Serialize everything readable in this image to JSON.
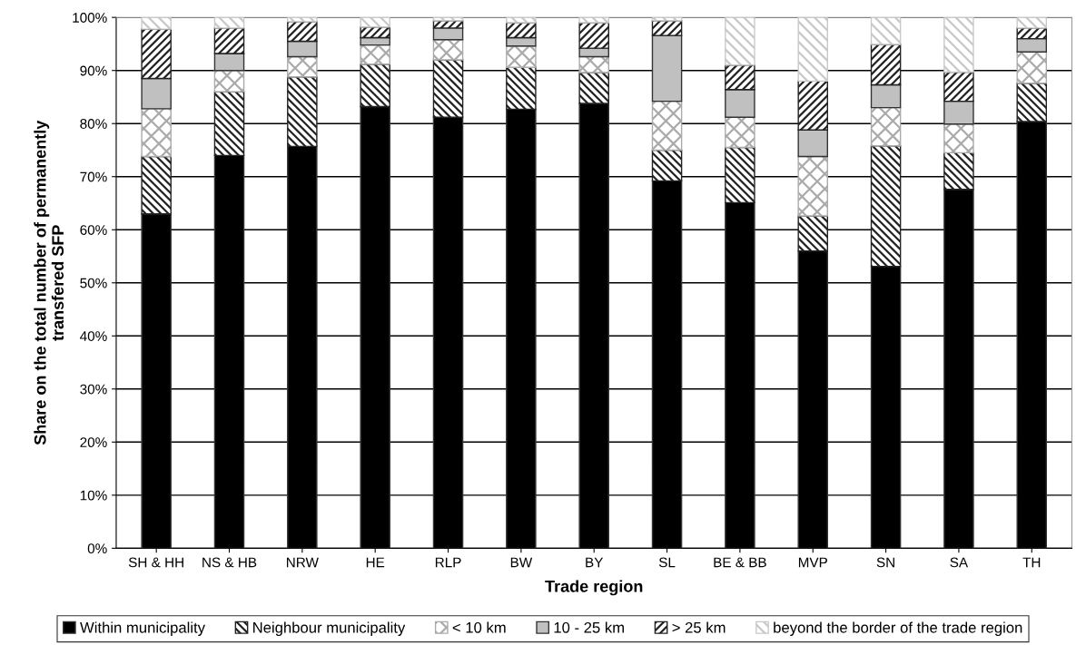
{
  "chart_data": {
    "type": "bar",
    "stacked": true,
    "xlabel": "Trade region",
    "ylabel": "Share on the total number of permanently\ntransfered SFP",
    "categories": [
      "SH & HH",
      "NS & HB",
      "NRW",
      "HE",
      "RLP",
      "BW",
      "BY",
      "SL",
      "BE & BB",
      "MVP",
      "SN",
      "SA",
      "TH"
    ],
    "series": [
      {
        "name": "Within municipality",
        "color": "#000000",
        "values": [
          63,
          74,
          75.7,
          83.2,
          81.2,
          82.7,
          83.8,
          69.2,
          65.1,
          56,
          53.1,
          67.6,
          80.4
        ]
      },
      {
        "name": "Neighbour municipality",
        "color": "#222222",
        "values": [
          10.8,
          12,
          13.1,
          8,
          10.8,
          7.9,
          5.8,
          5.8,
          10.4,
          6.6,
          22.7,
          6.9,
          7.2
        ]
      },
      {
        "name": "< 10 km",
        "color": "#aaaaaa",
        "values": [
          9,
          4,
          3.8,
          3.6,
          3.8,
          4,
          3,
          9.2,
          5.7,
          11.2,
          7.2,
          5.4,
          5.9
        ]
      },
      {
        "name": "10 - 25 km",
        "color": "#c0c0c0",
        "values": [
          5.7,
          3.2,
          2.9,
          1.4,
          2.2,
          1.6,
          1.6,
          12.4,
          5.2,
          5,
          4.3,
          4.3,
          2.5
        ]
      },
      {
        "name": "> 25 km",
        "color": "#222222",
        "values": [
          9.3,
          4.8,
          3.7,
          2,
          1.4,
          2.8,
          4.8,
          2.8,
          4.6,
          9.2,
          7.6,
          5.5,
          2
        ]
      },
      {
        "name": "beyond the border of the trade region",
        "color": "#c8c8c8",
        "values": [
          2.2,
          2,
          0.8,
          1.8,
          0.6,
          1,
          1,
          0.6,
          9,
          12,
          5.1,
          10.3,
          2
        ]
      }
    ],
    "ylim": [
      0,
      100
    ],
    "yticks": [
      {
        "value": 0,
        "label": "0%"
      },
      {
        "value": 10,
        "label": "10%"
      },
      {
        "value": 20,
        "label": "20%"
      },
      {
        "value": 30,
        "label": "30%"
      },
      {
        "value": 40,
        "label": "40%"
      },
      {
        "value": 50,
        "label": "50%"
      },
      {
        "value": 60,
        "label": "60%"
      },
      {
        "value": 70,
        "label": "70%"
      },
      {
        "value": 80,
        "label": "80%"
      },
      {
        "value": 90,
        "label": "90%"
      },
      {
        "value": 100,
        "label": "100%"
      }
    ],
    "grid": "y",
    "legend": "bottom"
  }
}
